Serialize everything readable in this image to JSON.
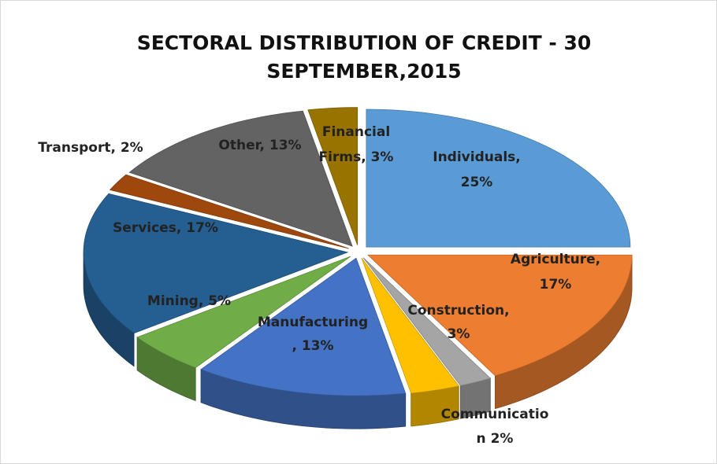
{
  "chart_data": {
    "type": "pie",
    "title": [
      "SECTORAL DISTRIBUTION OF CREDIT - 30",
      "SEPTEMBER,2015"
    ],
    "values": [
      25,
      17,
      2,
      3,
      13,
      5,
      17,
      2,
      13,
      3
    ],
    "value_labels": [
      [
        "Individuals,",
        "25%"
      ],
      [
        "Agriculture,",
        "17%"
      ],
      [
        "Communicatio",
        "n 2%"
      ],
      [
        "Construction,",
        "3%"
      ],
      [
        "Manufacturing",
        ", 13%"
      ],
      [
        "Mining, 5%"
      ],
      [
        "Services, 17%"
      ],
      [
        "Transport,  2%"
      ],
      [
        "Other, 13%"
      ],
      [
        "Financial",
        "Firms, 3%"
      ]
    ],
    "colors": [
      "#5b9bd5",
      "#ed7d31",
      "#a5a5a5",
      "#ffc000",
      "#4472c4",
      "#70ad47",
      "#255e91",
      "#9e480e",
      "#636363",
      "#997300"
    ]
  }
}
